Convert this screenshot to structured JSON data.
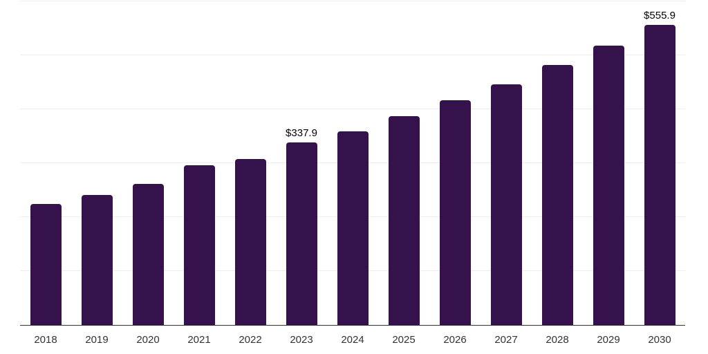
{
  "chart_data": {
    "type": "bar",
    "title": "",
    "xlabel": "",
    "ylabel": "",
    "categories": [
      "2018",
      "2019",
      "2020",
      "2021",
      "2022",
      "2023",
      "2024",
      "2025",
      "2026",
      "2027",
      "2028",
      "2029",
      "2030"
    ],
    "values": [
      225,
      241,
      262,
      296,
      308,
      337.9,
      359,
      387,
      417,
      446,
      482,
      518,
      555.9
    ],
    "data_labels": {
      "2023": "$337.9",
      "2030": "$555.9"
    },
    "ylim": [
      0,
      600
    ],
    "grid_step": 100,
    "grid": "horizontal",
    "y_axis_labels": "hidden",
    "legend": "none",
    "colors": {
      "bar": "#36124D",
      "axis": "#333333",
      "grid": "#EDEDED",
      "data_label": "#000000",
      "tick_label": "#333333",
      "background": "#FFFFFF"
    }
  }
}
